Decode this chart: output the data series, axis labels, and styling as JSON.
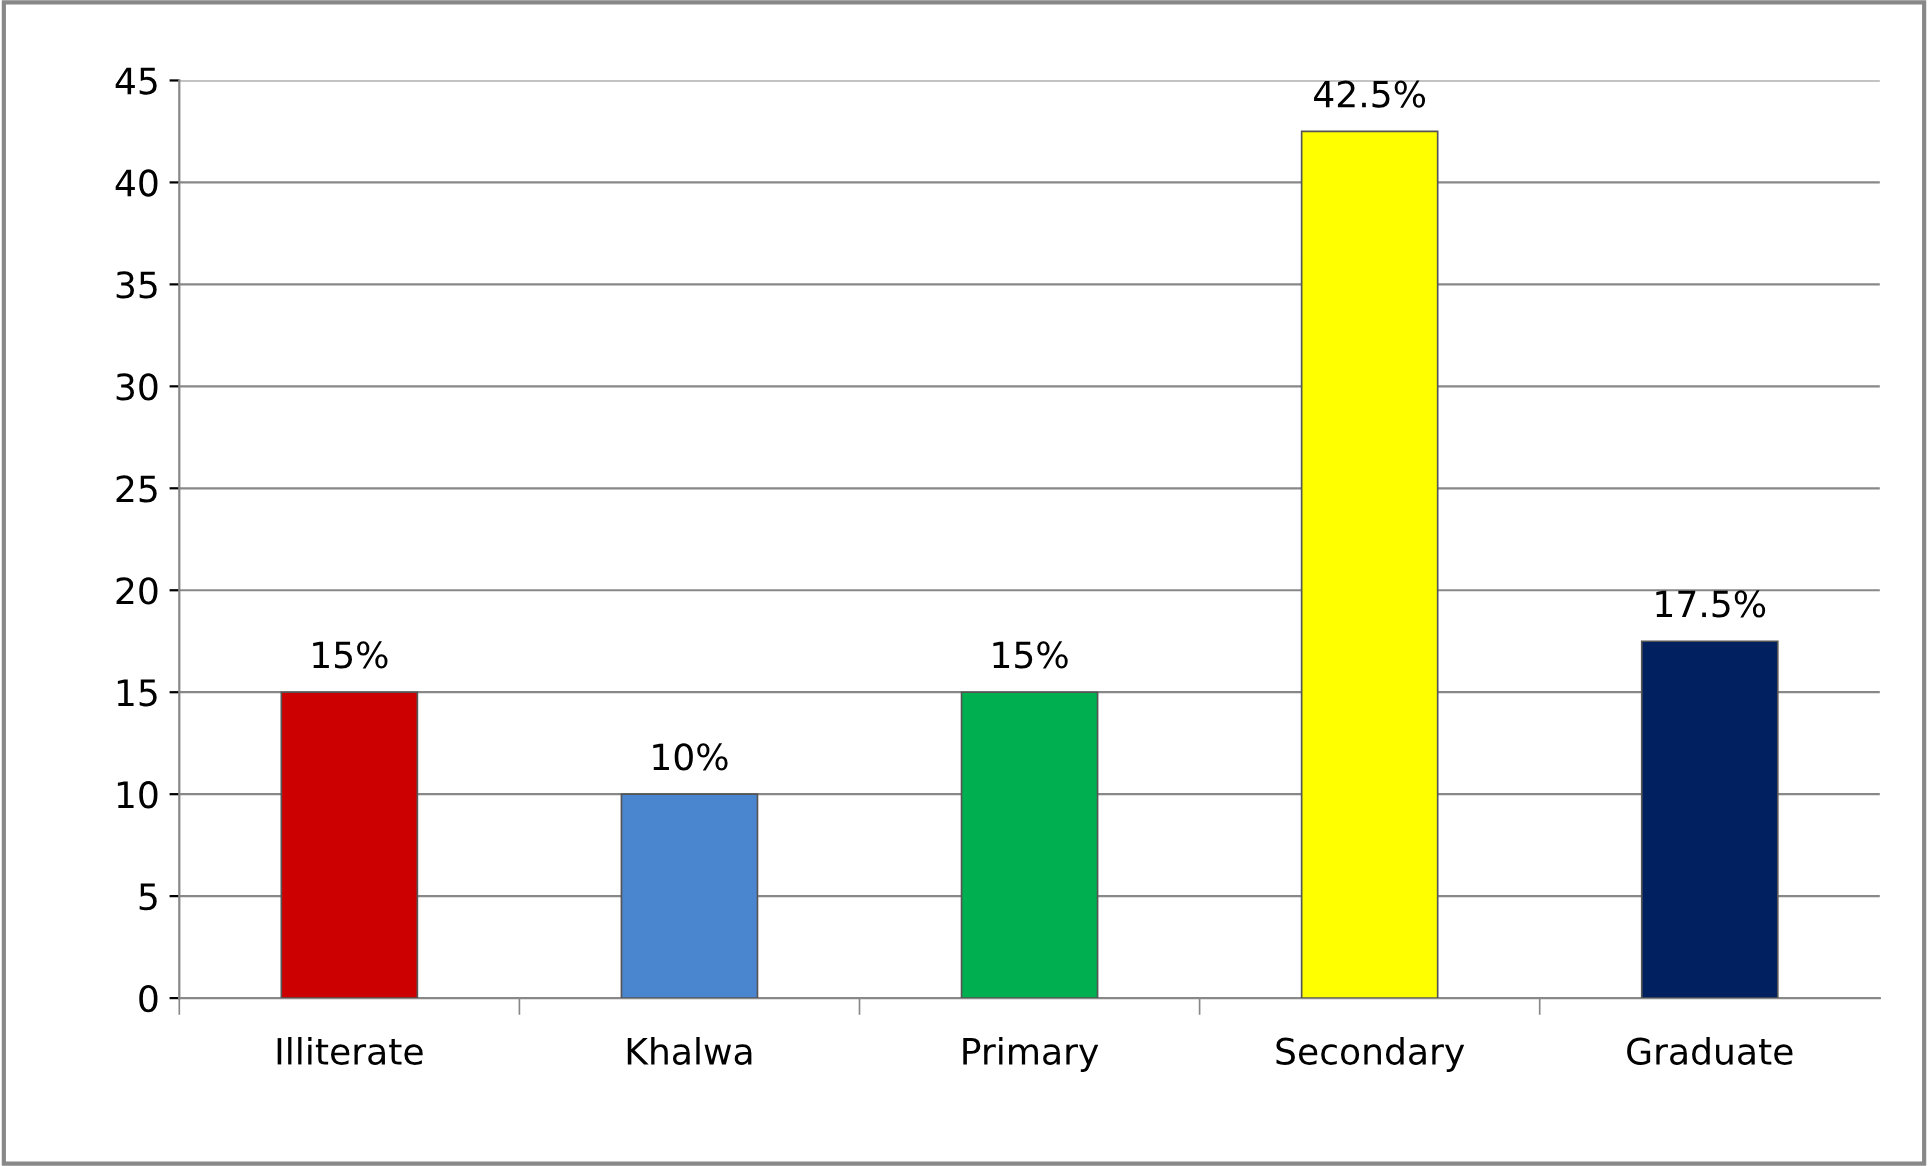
{
  "chart_data": {
    "type": "bar",
    "categories": [
      "Illiterate",
      "Khalwa",
      "Primary",
      "Secondary",
      "Graduate"
    ],
    "values": [
      15,
      10,
      15,
      42.5,
      17.5
    ],
    "colors": [
      "#cc0000",
      "#4a86d0",
      "#00b050",
      "#ffff00",
      "#002060"
    ],
    "value_labels": [
      "15%",
      "10%",
      "15%",
      "42.5%",
      "17.5%"
    ],
    "ylim": [
      0,
      45
    ],
    "yticks": [
      0,
      5,
      10,
      15,
      20,
      25,
      30,
      35,
      40,
      45
    ],
    "grid": "y",
    "legend": false
  }
}
